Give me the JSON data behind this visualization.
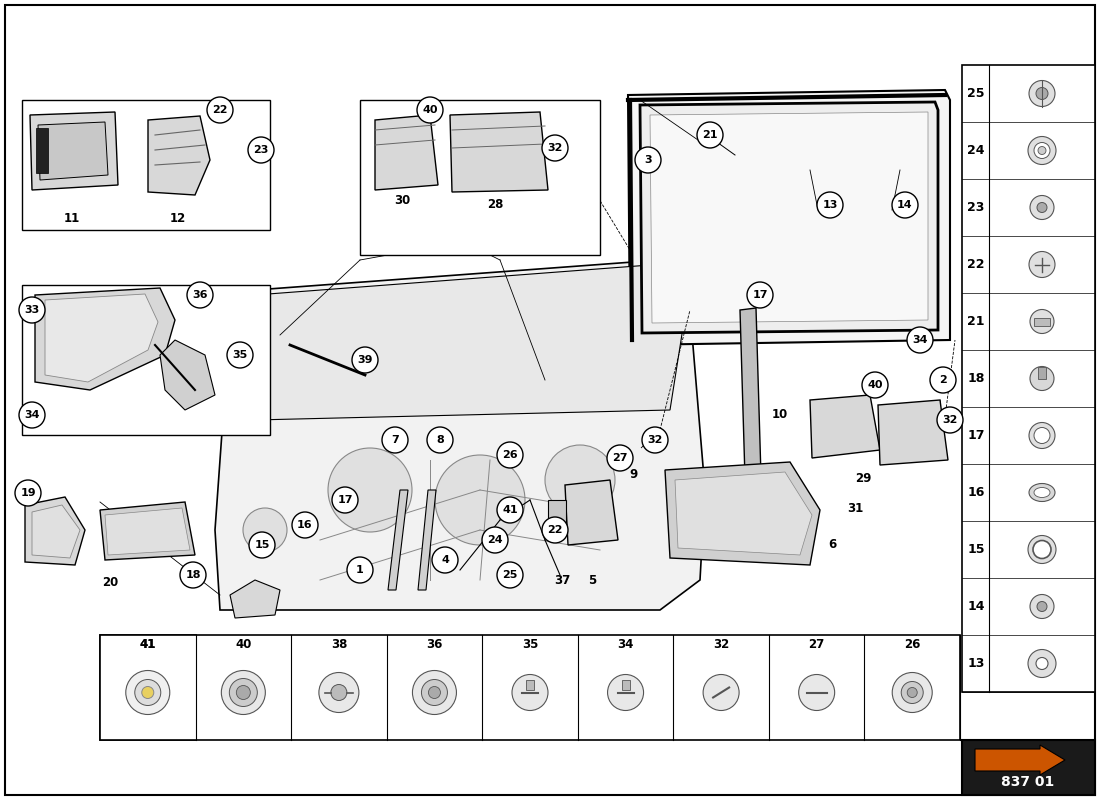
{
  "bg": "#ffffff",
  "watermark_color": "#c8a040",
  "arrow_bg": "#1a1a1a",
  "arrow_color": "#cc5500",
  "part_number": "837 01",
  "right_panel_numbers": [
    25,
    24,
    23,
    22,
    21,
    18,
    17,
    16,
    15,
    14,
    13
  ],
  "bottom_panel_numbers": [
    41,
    40,
    38,
    36,
    35,
    34,
    32,
    27,
    26
  ]
}
